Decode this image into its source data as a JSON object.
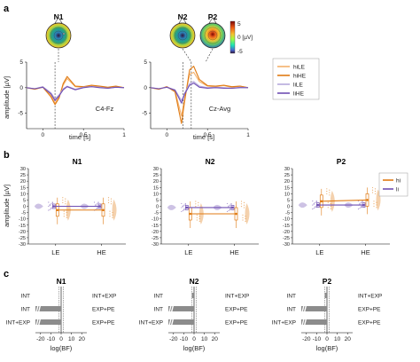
{
  "panels": {
    "a": {
      "letter": "a",
      "left_title": "N1",
      "mid_titles": [
        "N2",
        "P2"
      ],
      "ylabel": "amplitude [µV]",
      "xlabel": "time [s]",
      "left_channel": "C4-Fz",
      "right_channel": "Cz-Avg",
      "colorbar": {
        "ticks": [
          "5",
          "0 [µV]",
          "-5"
        ],
        "colors": [
          "#7a0403",
          "#f7c030",
          "#21a585",
          "#2c7fb8",
          "#30123b"
        ]
      },
      "legend": [
        {
          "label": "hiLE",
          "color": "#f4b06a"
        },
        {
          "label": "hiHE",
          "color": "#e07b14"
        },
        {
          "label": "liLE",
          "color": "#b6a8dc"
        },
        {
          "label": "liHE",
          "color": "#6f4fb3"
        }
      ]
    },
    "b": {
      "letter": "b",
      "titles": [
        "N1",
        "N2",
        "P2"
      ],
      "ylabel": "amplitude [µV]",
      "xticks": [
        "LE",
        "HE"
      ],
      "legend": [
        {
          "label": "hi",
          "color": "#e07b14"
        },
        {
          "label": "li",
          "color": "#6f4fb3"
        }
      ]
    },
    "c": {
      "letter": "c",
      "titles": [
        "N1",
        "N2",
        "P2"
      ],
      "row_labels_left": [
        "INT",
        "INT",
        "INT+EXP"
      ],
      "row_labels_right": [
        "INT+EXP",
        "EXP+PE",
        "EXP+PE"
      ],
      "xlabel": "log(BF)"
    }
  },
  "chart_data": [
    {
      "type": "line",
      "panel": "a-left",
      "title": "N1",
      "xlabel": "time [s]",
      "ylabel": "amplitude [µV]",
      "xlim": [
        -0.2,
        1.0
      ],
      "ylim": [
        -8,
        5
      ],
      "xticks": [
        0,
        0.5,
        1
      ],
      "yticks": [
        -5,
        0,
        5
      ],
      "x": [
        -0.2,
        -0.1,
        0,
        0.1,
        0.15,
        0.2,
        0.25,
        0.3,
        0.4,
        0.5,
        0.6,
        0.7,
        0.8,
        0.9,
        1.0
      ],
      "series": [
        {
          "name": "hiLE",
          "values": [
            0,
            -0.3,
            0.2,
            -1.5,
            -3.0,
            -1.8,
            0.5,
            1.8,
            0.2,
            0.1,
            0.4,
            0.2,
            0,
            0.2,
            0
          ]
        },
        {
          "name": "hiHE",
          "values": [
            0,
            -0.3,
            0.1,
            -1.8,
            -3.3,
            -2.0,
            0.8,
            2.2,
            0.3,
            0.2,
            0.5,
            0.3,
            0.1,
            0.3,
            0
          ]
        },
        {
          "name": "liLE",
          "values": [
            0,
            -0.2,
            0.2,
            -1.0,
            -2.2,
            -1.4,
            -0.2,
            0.3,
            -0.3,
            0.1,
            0.2,
            0.1,
            -0.1,
            0.1,
            0
          ]
        },
        {
          "name": "liHE",
          "values": [
            0,
            -0.2,
            0.1,
            -1.2,
            -2.5,
            -1.6,
            -0.4,
            0.2,
            -0.4,
            0.0,
            0.2,
            0.0,
            -0.1,
            0.1,
            0
          ]
        }
      ],
      "vline_x": 0.15
    },
    {
      "type": "line",
      "panel": "a-right",
      "title": "N2 P2",
      "xlabel": "time [s]",
      "xlim": [
        -0.2,
        1.0
      ],
      "ylim": [
        -8,
        5
      ],
      "xticks": [
        0,
        0.5,
        1
      ],
      "yticks": [
        -5,
        0,
        5
      ],
      "x": [
        -0.2,
        -0.1,
        0,
        0.1,
        0.18,
        0.22,
        0.28,
        0.33,
        0.4,
        0.5,
        0.6,
        0.7,
        0.8,
        0.9,
        1.0
      ],
      "series": [
        {
          "name": "hiLE",
          "values": [
            0,
            -0.3,
            0.2,
            -0.6,
            -5.5,
            -2.0,
            2.6,
            3.0,
            1.2,
            0.3,
            0.2,
            0.4,
            0.1,
            0.3,
            0
          ]
        },
        {
          "name": "hiHE",
          "values": [
            0,
            -0.3,
            0.2,
            -0.8,
            -7.0,
            -2.5,
            3.5,
            4.2,
            1.6,
            0.4,
            0.3,
            0.5,
            0.2,
            0.3,
            0
          ]
        },
        {
          "name": "liLE",
          "values": [
            0,
            -0.2,
            0.1,
            -0.4,
            -2.5,
            -1.0,
            0.8,
            1.2,
            0.3,
            0.0,
            0.1,
            0.0,
            -0.1,
            0.1,
            0
          ]
        },
        {
          "name": "liHE",
          "values": [
            0,
            -0.2,
            0.1,
            -0.5,
            -3.0,
            -1.2,
            0.5,
            0.9,
            0.1,
            -0.1,
            0.0,
            -0.1,
            -0.1,
            0.0,
            0
          ]
        }
      ],
      "vline_x": [
        0.2,
        0.3
      ]
    },
    {
      "type": "scatter",
      "panel": "b",
      "titles": [
        "N1",
        "N2",
        "P2"
      ],
      "ylabel": "amplitude [µV]",
      "ylim": [
        -30,
        30
      ],
      "yticks": [
        -30,
        -25,
        -20,
        -15,
        -10,
        -5,
        0,
        5,
        10,
        15,
        20,
        25,
        30
      ],
      "categories": [
        "LE",
        "HE"
      ],
      "series": [
        {
          "name": "hi",
          "values_N1": [
            -3,
            -3
          ],
          "values_N2": [
            -6,
            -6
          ],
          "values_P2": [
            4,
            5
          ]
        },
        {
          "name": "li",
          "values_N1": [
            0,
            0
          ],
          "values_N2": [
            -1,
            -1
          ],
          "values_P2": [
            1,
            1
          ]
        }
      ]
    },
    {
      "type": "bar",
      "panel": "c",
      "xlabel": "log(BF)",
      "xlim": [
        -25,
        25
      ],
      "xticks": [
        -20,
        -10,
        0,
        10,
        20
      ],
      "rows": [
        "INT vs INT+EXP",
        "INT vs EXP+PE",
        "INT+EXP vs EXP+PE"
      ],
      "values_N1": [
        0,
        -500,
        -500
      ],
      "values_N2": [
        -2,
        -500,
        -500
      ],
      "values_P2": [
        -2,
        -500,
        -500
      ]
    }
  ]
}
